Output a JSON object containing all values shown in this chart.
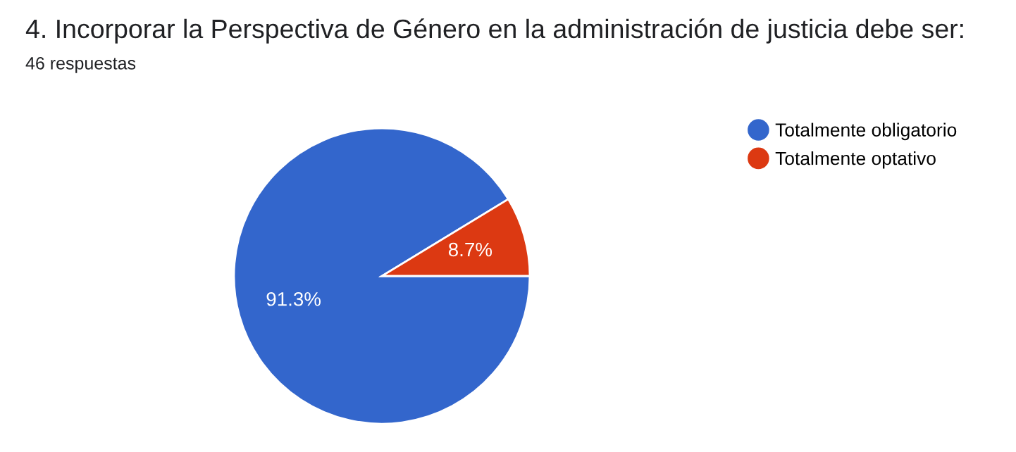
{
  "chart_data": {
    "type": "pie",
    "title": "4. Incorporar la Perspectiva de Género en la administración de justicia debe ser:",
    "subtitle": "46 respuestas",
    "categories": [
      "Totalmente obligatorio",
      "Totalmente optativo"
    ],
    "values": [
      91.3,
      8.7
    ],
    "value_labels": [
      "91.3%",
      "8.7%"
    ],
    "colors": [
      "#3366cc",
      "#dc3912"
    ],
    "legend": "top right"
  }
}
